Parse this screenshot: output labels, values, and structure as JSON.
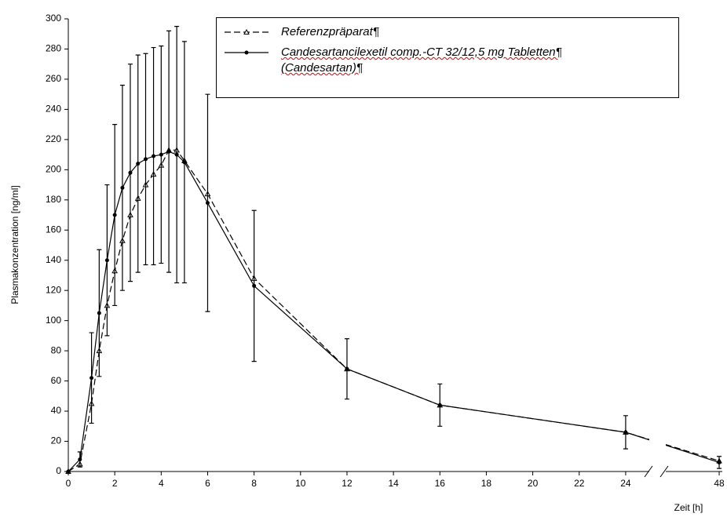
{
  "chart_data": {
    "type": "line",
    "y_label": "Plasmakonzentration [ng/ml]",
    "x_label": "Zeit [h]",
    "x": [
      0,
      0.5,
      1,
      1.33,
      1.67,
      2,
      2.33,
      2.67,
      3,
      3.33,
      3.67,
      4,
      4.33,
      4.67,
      5,
      6,
      8,
      12,
      16,
      24,
      48
    ],
    "series": [
      {
        "name": "Referenzpräparat¶",
        "color": "#000000",
        "linestyle": "dashed",
        "marker": "triangle-open",
        "values": [
          0,
          5,
          45,
          80,
          110,
          133,
          153,
          170,
          181,
          190,
          197,
          203,
          213,
          213,
          206,
          184,
          128,
          68,
          44,
          26,
          7
        ]
      },
      {
        "name": "Candesartancilexetil comp.-CT 32/12,5 mg Tabletten¶\n(Candesartan)¶",
        "color": "#000000",
        "linestyle": "solid",
        "marker": "circle",
        "values": [
          0,
          8,
          62,
          105,
          140,
          170,
          188,
          198,
          204,
          207,
          209,
          210,
          212,
          210,
          205,
          178,
          123,
          68,
          44,
          26,
          6
        ],
        "errors": [
          0,
          5,
          30,
          42,
          50,
          60,
          68,
          72,
          72,
          70,
          72,
          72,
          80,
          85,
          80,
          72,
          50,
          20,
          14,
          11,
          4
        ]
      }
    ],
    "xsegments": [
      [
        0,
        25
      ],
      [
        45.7,
        48
      ]
    ],
    "xticks": [
      0,
      2,
      4,
      6,
      8,
      10,
      12,
      14,
      16,
      18,
      20,
      22,
      24,
      48
    ],
    "ylim": [
      0,
      300
    ],
    "yticks": [
      0,
      20,
      40,
      60,
      80,
      100,
      120,
      140,
      160,
      180,
      200,
      220,
      240,
      260,
      280,
      300
    ],
    "legend": "upper right"
  }
}
